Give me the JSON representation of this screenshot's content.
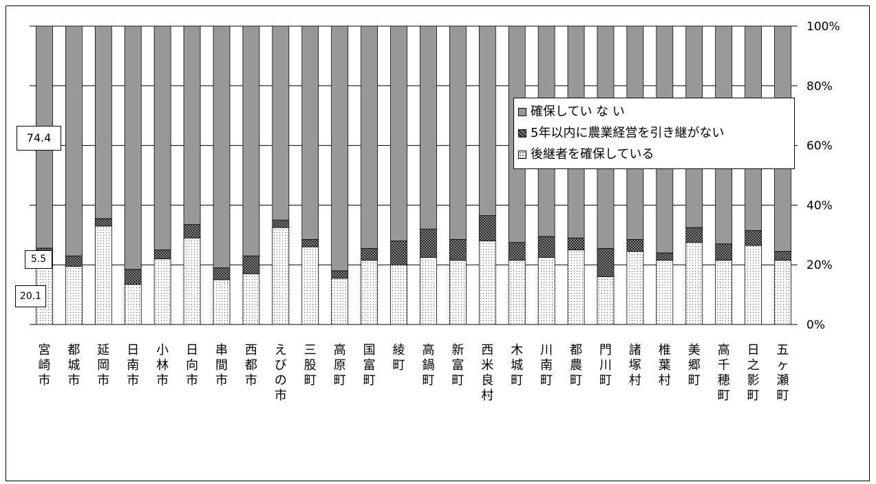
{
  "chart_data": {
    "type": "bar",
    "stacked": true,
    "percent": true,
    "categories": [
      "宮崎市",
      "都城市",
      "延岡市",
      "日南市",
      "小林市",
      "日向市",
      "串間市",
      "西都市",
      "えびの市",
      "三股町",
      "高原町",
      "国富町",
      "綾町",
      "高鍋町",
      "新富町",
      "西米良村",
      "木城町",
      "川南町",
      "都農町",
      "門川町",
      "諸塚村",
      "椎葉村",
      "美郷町",
      "高千穂町",
      "日之影町",
      "五ヶ瀬町"
    ],
    "series": [
      {
        "name": "後継者を確保している",
        "color": "#ffffff",
        "pattern": "dots",
        "values": [
          20.1,
          19.5,
          33.0,
          13.5,
          22.0,
          29.0,
          15.0,
          17.0,
          32.5,
          26.0,
          15.5,
          21.5,
          20.0,
          22.5,
          21.5,
          28.0,
          21.5,
          22.5,
          25.0,
          16.0,
          24.5,
          21.5,
          27.5,
          21.5,
          26.5,
          21.5
        ]
      },
      {
        "name": "5年以内に農業経営を引き継がない",
        "color": "#555555",
        "pattern": "checker",
        "values": [
          5.5,
          3.5,
          2.5,
          5.0,
          3.0,
          4.5,
          4.0,
          6.0,
          2.5,
          2.5,
          2.5,
          4.0,
          8.0,
          9.5,
          7.0,
          8.5,
          6.0,
          7.0,
          4.0,
          9.5,
          4.0,
          2.5,
          5.0,
          5.5,
          5.0,
          3.0
        ]
      },
      {
        "name": "確保していない",
        "color": "#999999",
        "pattern": "solid",
        "values": [
          74.4,
          77.0,
          64.5,
          81.5,
          75.0,
          66.5,
          81.0,
          77.0,
          65.0,
          71.5,
          82.0,
          74.5,
          72.0,
          68.0,
          71.5,
          63.5,
          72.5,
          70.5,
          71.0,
          74.5,
          71.5,
          76.0,
          67.5,
          73.0,
          68.5,
          75.5
        ]
      }
    ],
    "legend_labels": [
      "確保してい な い",
      "5年以内に農業経営を引き継がない",
      "後継者を確保している"
    ],
    "y_ticks": [
      "0%",
      "20%",
      "40%",
      "60%",
      "80%",
      "100%"
    ],
    "ylim": [
      0,
      100
    ],
    "y_axis_side": "right",
    "legend_position": "upper-right",
    "grid": true,
    "data_labels": {
      "top": "74.4",
      "middle": "5.5",
      "bottom": "20.1"
    }
  }
}
